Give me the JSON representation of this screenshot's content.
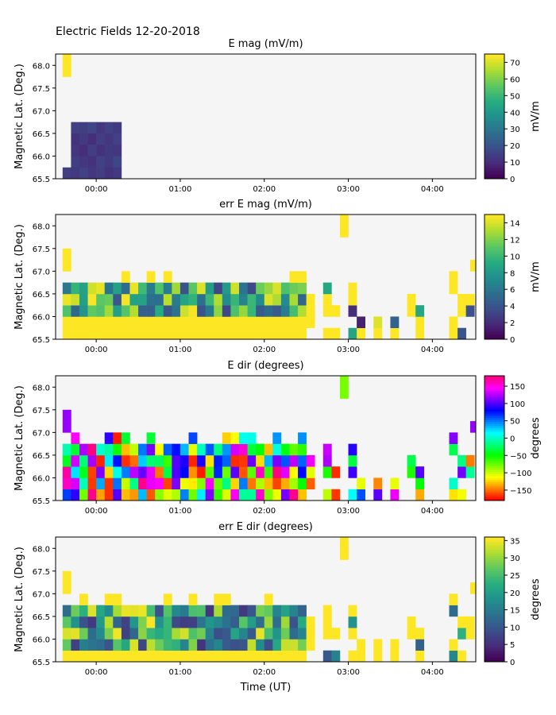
{
  "figure": {
    "suptitle": "Electric Fields 12-20-2018"
  },
  "chart_data": [
    {
      "type": "heatmap",
      "title": "E mag (mV/m)",
      "ylabel": "Magnetic Lat. (Deg.)",
      "xlabel": "",
      "xlim": [
        "23:31",
        "04:31"
      ],
      "ylim": [
        65.5,
        68.25
      ],
      "x_ticks": [
        "00:00",
        "01:00",
        "02:00",
        "03:00",
        "04:00"
      ],
      "y_ticks": [
        "65.5",
        "66.0",
        "66.5",
        "67.0",
        "67.5",
        "68.0"
      ],
      "colormap": "viridis",
      "color_range": [
        0,
        75
      ],
      "colorbar_label": "mV/m",
      "colorbar_ticks": [
        "0",
        "10",
        "20",
        "30",
        "40",
        "50",
        "60",
        "70"
      ],
      "value_note": "cells approx., values in mV/m, binned by 0.25 deg latitude and ~6 min time",
      "cells": [
        [
          -24,
          67.75,
          75
        ],
        [
          -24,
          68.0,
          75
        ],
        [
          -18,
          66.5,
          15
        ],
        [
          -12,
          66.5,
          14
        ],
        [
          -6,
          66.5,
          16
        ],
        [
          0,
          66.5,
          12
        ],
        [
          6,
          66.5,
          15
        ],
        [
          12,
          66.5,
          13
        ],
        [
          -18,
          66.25,
          11
        ],
        [
          -12,
          66.25,
          13
        ],
        [
          -6,
          66.25,
          10
        ],
        [
          0,
          66.25,
          14
        ],
        [
          6,
          66.25,
          12
        ],
        [
          12,
          66.25,
          15
        ],
        [
          -18,
          66.0,
          12
        ],
        [
          -12,
          66.0,
          10
        ],
        [
          -6,
          66.0,
          14
        ],
        [
          0,
          66.0,
          11
        ],
        [
          6,
          66.0,
          13
        ],
        [
          12,
          66.0,
          12
        ],
        [
          -18,
          65.75,
          14
        ],
        [
          -12,
          65.75,
          12
        ],
        [
          -6,
          65.75,
          11
        ],
        [
          0,
          65.75,
          15
        ],
        [
          6,
          65.75,
          13
        ],
        [
          12,
          65.75,
          16
        ],
        [
          -18,
          65.5,
          13
        ],
        [
          -12,
          65.5,
          15
        ],
        [
          -6,
          65.5,
          12
        ],
        [
          0,
          65.5,
          14
        ],
        [
          6,
          65.5,
          11
        ],
        [
          12,
          65.5,
          13
        ],
        [
          -24,
          65.5,
          14
        ]
      ]
    },
    {
      "type": "heatmap",
      "title": "err E mag (mV/m)",
      "ylabel": "Magnetic Lat. (Deg.)",
      "xlabel": "",
      "xlim": [
        "23:31",
        "04:31"
      ],
      "ylim": [
        65.5,
        68.25
      ],
      "x_ticks": [
        "00:00",
        "01:00",
        "02:00",
        "03:00",
        "04:00"
      ],
      "y_ticks": [
        "65.5",
        "66.0",
        "66.5",
        "67.0",
        "67.5",
        "68.0"
      ],
      "colormap": "viridis",
      "color_range": [
        0,
        15
      ],
      "colorbar_label": "mV/m",
      "colorbar_ticks": [
        "0",
        "2",
        "4",
        "6",
        "8",
        "10",
        "12",
        "14"
      ]
    },
    {
      "type": "heatmap",
      "title": "E dir (degrees)",
      "ylabel": "Magnetic Lat. (Deg.)",
      "xlabel": "",
      "xlim": [
        "23:31",
        "04:31"
      ],
      "ylim": [
        65.5,
        68.25
      ],
      "x_ticks": [
        "00:00",
        "01:00",
        "02:00",
        "03:00",
        "04:00"
      ],
      "y_ticks": [
        "65.5",
        "66.0",
        "66.5",
        "67.0",
        "67.5",
        "68.0"
      ],
      "colormap": "hsv",
      "color_range": [
        -180,
        180
      ],
      "colorbar_label": "degrees",
      "colorbar_ticks": [
        "−150",
        "−100",
        "−50",
        "0",
        "50",
        "100",
        "150"
      ]
    },
    {
      "type": "heatmap",
      "title": "err E dir (degrees)",
      "ylabel": "Magnetic Lat. (Deg.)",
      "xlabel": "Time (UT)",
      "xlim": [
        "23:31",
        "04:31"
      ],
      "ylim": [
        65.5,
        68.25
      ],
      "x_ticks": [
        "00:00",
        "01:00",
        "02:00",
        "03:00",
        "04:00"
      ],
      "y_ticks": [
        "65.5",
        "66.0",
        "66.5",
        "67.0",
        "67.5",
        "68.0"
      ],
      "colormap": "viridis",
      "color_range": [
        0,
        36
      ],
      "colorbar_label": "degrees",
      "colorbar_ticks": [
        "0",
        "5",
        "10",
        "15",
        "20",
        "25",
        "30",
        "35"
      ]
    }
  ]
}
